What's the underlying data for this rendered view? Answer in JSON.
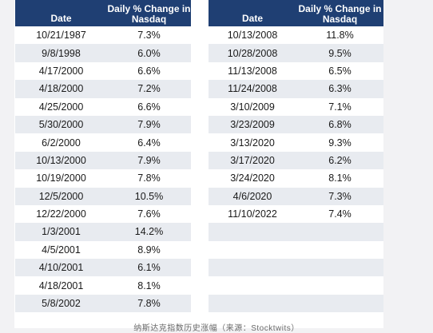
{
  "left_table": {
    "headers": {
      "date": "Date",
      "change": "Daily % Change in Nasdaq"
    },
    "rows": [
      {
        "date": "10/21/1987",
        "change": "7.3%"
      },
      {
        "date": "9/8/1998",
        "change": "6.0%"
      },
      {
        "date": "4/17/2000",
        "change": "6.6%"
      },
      {
        "date": "4/18/2000",
        "change": "7.2%"
      },
      {
        "date": "4/25/2000",
        "change": "6.6%"
      },
      {
        "date": "5/30/2000",
        "change": "7.9%"
      },
      {
        "date": "6/2/2000",
        "change": "6.4%"
      },
      {
        "date": "10/13/2000",
        "change": "7.9%"
      },
      {
        "date": "10/19/2000",
        "change": "7.8%"
      },
      {
        "date": "12/5/2000",
        "change": "10.5%"
      },
      {
        "date": "12/22/2000",
        "change": "7.6%"
      },
      {
        "date": "1/3/2001",
        "change": "14.2%"
      },
      {
        "date": "4/5/2001",
        "change": "8.9%"
      },
      {
        "date": "4/10/2001",
        "change": "6.1%"
      },
      {
        "date": "4/18/2001",
        "change": "8.1%"
      },
      {
        "date": "5/8/2002",
        "change": "7.8%"
      }
    ]
  },
  "right_table": {
    "headers": {
      "date": "Date",
      "change": "Daily % Change in Nasdaq"
    },
    "rows": [
      {
        "date": "10/13/2008",
        "change": "11.8%"
      },
      {
        "date": "10/28/2008",
        "change": "9.5%"
      },
      {
        "date": "11/13/2008",
        "change": "6.5%"
      },
      {
        "date": "11/24/2008",
        "change": "6.3%"
      },
      {
        "date": "3/10/2009",
        "change": "7.1%"
      },
      {
        "date": "3/23/2009",
        "change": "6.8%"
      },
      {
        "date": "3/13/2020",
        "change": "9.3%"
      },
      {
        "date": "3/17/2020",
        "change": "6.2%"
      },
      {
        "date": "3/24/2020",
        "change": "8.1%"
      },
      {
        "date": "4/6/2020",
        "change": "7.3%"
      },
      {
        "date": "11/10/2022",
        "change": "7.4%"
      },
      {
        "date": "",
        "change": ""
      },
      {
        "date": "",
        "change": ""
      },
      {
        "date": "",
        "change": ""
      },
      {
        "date": "",
        "change": ""
      },
      {
        "date": "",
        "change": ""
      }
    ]
  },
  "footer": {
    "caption": "纳斯达克指数历史涨幅（来源：Stocktwits）"
  },
  "colors": {
    "header_bg": "#1f3f73",
    "stripe": "#e8ebf0"
  }
}
